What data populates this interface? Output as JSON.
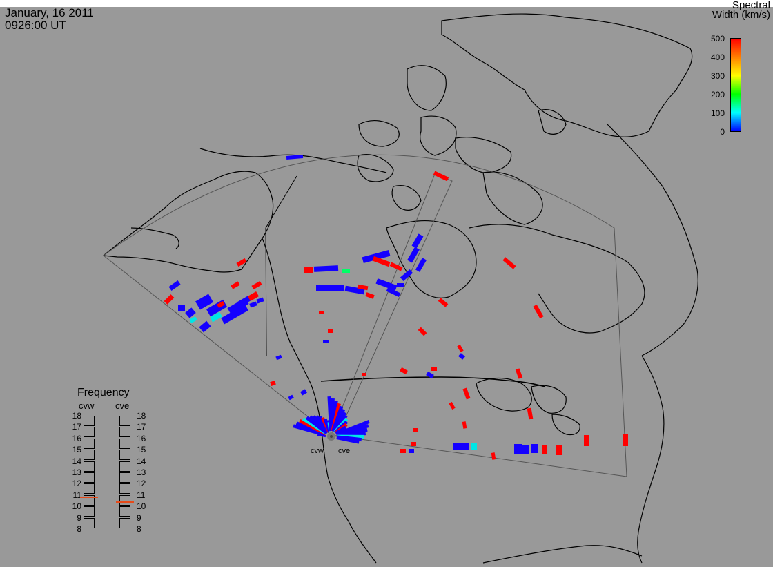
{
  "header": {
    "date": "January, 16 2011",
    "time": "0926:00 UT"
  },
  "colorbar": {
    "title_line1": "Spectral",
    "title_line2": "Width (km/s)",
    "ticks": [
      "500",
      "400",
      "300",
      "200",
      "100",
      "0"
    ],
    "stops": [
      "#ff0000",
      "#ff8000",
      "#ffff00",
      "#00ff00",
      "#00ffff",
      "#0000ff"
    ]
  },
  "frequency": {
    "title": "Frequency",
    "left_label": "cvw",
    "right_label": "cve",
    "values": [
      "18",
      "17",
      "16",
      "15",
      "14",
      "13",
      "12",
      "11",
      "10",
      "9",
      "8"
    ],
    "cvw_mhz": 10.9,
    "cve_mhz": 10.5,
    "marker_color": "#e64a19"
  },
  "radars": {
    "cvw": "cvw",
    "cve": "cve"
  },
  "colors": {
    "background": "#999999",
    "coastline": "#000000",
    "fov_outline": "#555555",
    "red_echo": "#ff0000",
    "blue_echo": "#1400ff",
    "cyan_echo": "#00e6e6",
    "green_echo": "#00ff66"
  }
}
